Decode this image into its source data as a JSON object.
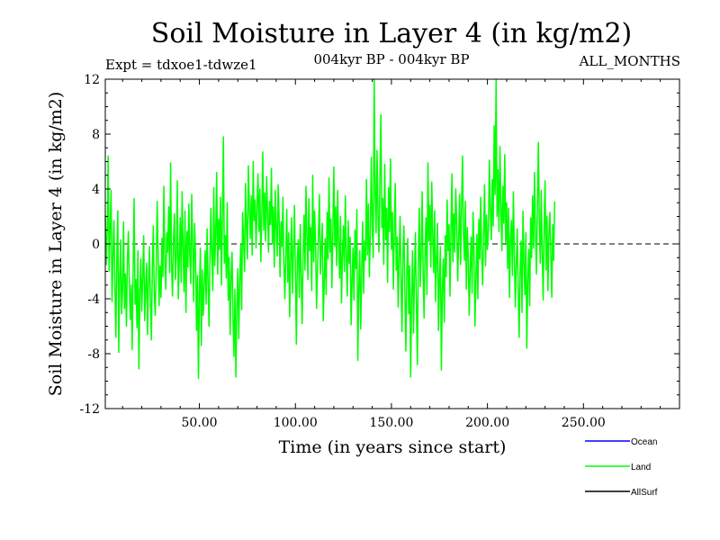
{
  "chart_data": {
    "type": "line",
    "title": "Soil Moisture in Layer 4 (in kg/m2)",
    "subtitle": "004kyr BP - 004kyr BP",
    "expt_label": "Expt = tdxoe1-tdwze1",
    "period_label": "ALL_MONTHS",
    "xlabel": "Time (in years since start)",
    "ylabel": "Soil Moisture in Layer 4 (in kg/m2)",
    "xlim": [
      1,
      300
    ],
    "ylim": [
      -12,
      12
    ],
    "xticks": [
      50,
      100,
      150,
      200,
      250
    ],
    "xtick_labels": [
      "50.00",
      "100.00",
      "150.00",
      "200.00",
      "250.00"
    ],
    "yticks": [
      -12,
      -8,
      -4,
      0,
      4,
      8,
      12
    ],
    "ytick_labels": [
      "-12",
      "-8",
      "-4",
      "0",
      "4",
      "8",
      "12"
    ],
    "zero_line": true,
    "series": [
      {
        "name": "Ocean",
        "color": "#0000ff",
        "values": []
      },
      {
        "name": "Land",
        "color": "#00ff00",
        "x_start": 1,
        "x_step": 0.5,
        "values": [
          2.1,
          -1.5,
          0.8,
          6.4,
          -2.0,
          1.2,
          3.9,
          -4.2,
          -0.9,
          1.7,
          -3.1,
          -6.8,
          -1.0,
          2.4,
          -7.9,
          -2.5,
          0.3,
          -5.1,
          -3.4,
          1.6,
          -4.7,
          -2.2,
          -6.0,
          -1.3,
          0.9,
          -2.8,
          -5.5,
          -3.0,
          -7.7,
          -1.9,
          3.3,
          -4.4,
          -2.6,
          -6.1,
          -0.5,
          -9.1,
          -3.7,
          -1.1,
          -4.9,
          -2.3,
          0.6,
          -5.6,
          -3.2,
          -1.4,
          -6.6,
          -2.9,
          -0.2,
          -4.1,
          -7.0,
          -1.8,
          1.3,
          -3.6,
          -5.2,
          -2.0,
          3.1,
          -0.7,
          -4.5,
          -1.6,
          -3.9,
          0.4,
          -2.4,
          4.2,
          -1.2,
          -3.3,
          0.8,
          -0.6,
          2.7,
          -2.1,
          5.9,
          -1.5,
          -3.8,
          0.2,
          2.2,
          -2.6,
          -0.9,
          4.6,
          -4.0,
          -1.3,
          1.9,
          -2.8,
          3.8,
          -0.4,
          -3.5,
          2.4,
          -5.0,
          0.9,
          -1.7,
          2.9,
          -0.8,
          -2.9,
          3.6,
          0.1,
          -4.2,
          1.5,
          -1.0,
          -6.3,
          -2.3,
          -9.8,
          -3.6,
          -0.3,
          -7.4,
          -1.9,
          -5.2,
          -3.1,
          -0.5,
          -4.4,
          1.1,
          -2.7,
          -6.0,
          -1.2,
          2.6,
          -0.9,
          -3.4,
          4.1,
          -1.6,
          0.7,
          5.2,
          -2.2,
          1.8,
          -0.4,
          3.4,
          -3.0,
          2.0,
          7.8,
          -1.4,
          0.6,
          -2.5,
          3.0,
          -4.1,
          -1.0,
          -6.6,
          -2.4,
          -0.6,
          -5.4,
          -8.2,
          -3.3,
          -9.7,
          -4.6,
          -1.8,
          -6.9,
          -2.7,
          -0.1,
          -4.8,
          2.3,
          0.5,
          -2.0,
          4.4,
          1.2,
          -1.1,
          5.7,
          2.6,
          0.4,
          3.5,
          -0.8,
          6.0,
          1.7,
          3.2,
          -0.3,
          2.8,
          5.1,
          0.9,
          4.0,
          -1.3,
          2.2,
          6.7,
          1.0,
          3.7,
          0.2,
          4.9,
          2.4,
          -0.6,
          3.1,
          1.4,
          5.5,
          0.0,
          2.7,
          -1.7,
          3.9,
          1.1,
          -0.9,
          4.3,
          2.0,
          -2.4,
          1.6,
          -0.2,
          3.4,
          -1.5,
          -4.0,
          -0.7,
          2.5,
          -2.8,
          0.8,
          -5.3,
          -1.2,
          1.9,
          -3.6,
          -0.4,
          2.8,
          -2.1,
          -7.3,
          -1.0,
          0.3,
          -3.9,
          1.4,
          -2.3,
          -5.8,
          -0.8,
          2.1,
          -1.9,
          4.2,
          0.6,
          -2.6,
          3.3,
          -0.5,
          1.2,
          -3.4,
          5.0,
          -1.3,
          2.4,
          -0.1,
          -4.7,
          -1.8,
          0.7,
          3.6,
          -2.2,
          -0.3,
          1.5,
          -5.6,
          -2.9,
          0.4,
          -3.7,
          2.3,
          -1.1,
          4.8,
          -0.6,
          1.8,
          -3.2,
          0.9,
          5.6,
          -0.2,
          2.7,
          -1.6,
          3.9,
          0.1,
          -2.5,
          2.0,
          -4.3,
          -0.7,
          1.3,
          -2.0,
          3.5,
          -0.9,
          -3.8,
          1.7,
          -1.4,
          0.5,
          -5.9,
          -2.7,
          -0.3,
          -4.1,
          1.0,
          -1.8,
          2.5,
          -8.5,
          -3.3,
          -0.5,
          -6.2,
          -2.1,
          1.6,
          -3.6,
          0.2,
          -1.2,
          4.7,
          -0.8,
          2.9,
          -2.4,
          0.6,
          6.3,
          1.4,
          -1.0,
          12.0,
          3.8,
          0.8,
          6.8,
          2.1,
          -0.6,
          4.9,
          9.4,
          1.2,
          3.3,
          -1.5,
          5.8,
          0.3,
          2.6,
          -2.8,
          4.1,
          0.9,
          6.2,
          -0.4,
          2.3,
          -3.3,
          1.1,
          4.4,
          -1.9,
          0.5,
          -4.6,
          -1.0,
          2.0,
          -2.6,
          -6.4,
          -0.8,
          1.3,
          -3.5,
          -7.8,
          -2.2,
          0.4,
          -5.1,
          -1.6,
          -9.7,
          -3.9,
          -0.5,
          -6.5,
          -2.3,
          0.8,
          -4.4,
          -8.8,
          -1.3,
          2.6,
          -3.1,
          -0.7,
          3.8,
          -2.0,
          -5.4,
          -0.4,
          1.9,
          -3.7,
          5.9,
          0.2,
          2.8,
          -1.7,
          4.5,
          0.7,
          -2.1,
          2.4,
          -4.2,
          -1.0,
          1.5,
          -6.3,
          -2.6,
          -0.2,
          -9.2,
          -3.4,
          -1.1,
          -5.7,
          0.6,
          -2.4,
          3.2,
          -0.5,
          1.4,
          -3.8,
          0.9,
          5.1,
          -1.3,
          2.2,
          -0.6,
          4.0,
          1.6,
          -2.7,
          0.3,
          3.6,
          -1.5,
          2.7,
          6.4,
          0.8,
          -1.2,
          3.1,
          -3.3,
          1.2,
          -0.9,
          -5.2,
          -1.9,
          0.5,
          -3.6,
          2.3,
          -0.2,
          -6.0,
          -2.5,
          0.7,
          -4.0,
          1.8,
          -1.1,
          3.4,
          -0.8,
          -3.0,
          0.6,
          4.3,
          -1.6,
          2.1,
          -0.4,
          1.0,
          6.1,
          2.5,
          0.3,
          4.7,
          1.3,
          8.6,
          3.6,
          12.0,
          2.0,
          5.4,
          0.9,
          7.1,
          2.8,
          -0.5,
          4.2,
          1.5,
          6.5,
          0.1,
          3.0,
          -1.8,
          2.6,
          -3.9,
          0.4,
          1.7,
          -2.3,
          3.8,
          -0.7,
          -4.6,
          -1.5,
          1.1,
          -3.2,
          -6.8,
          -2.0,
          0.2,
          -5.0,
          2.4,
          -1.3,
          -3.7,
          0.8,
          -7.6,
          -2.6,
          -0.4,
          -4.5,
          1.9,
          -1.0,
          3.5,
          -0.3,
          5.2,
          0.9,
          -2.2,
          2.8,
          7.4,
          1.6,
          -1.4,
          3.9,
          -0.6,
          -4.1,
          1.2,
          4.6,
          -1.9,
          2.0,
          -3.4,
          0.5,
          2.3,
          -0.8,
          -3.9,
          1.4,
          -1.2,
          3.1
        ]
      },
      {
        "name": "AllSurf",
        "color": "#000000",
        "values": []
      }
    ],
    "legend": [
      {
        "label": "Ocean",
        "color": "#0000ff"
      },
      {
        "label": "Land",
        "color": "#00ff00"
      },
      {
        "label": "AllSurf",
        "color": "#000000"
      }
    ]
  }
}
